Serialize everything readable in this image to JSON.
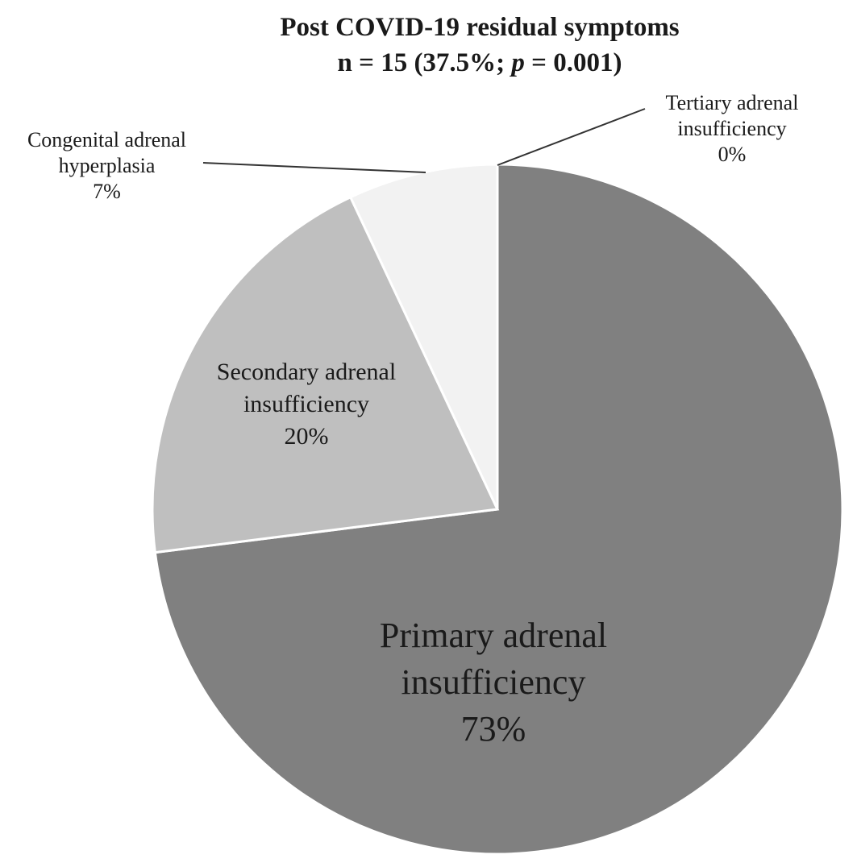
{
  "chart_data": {
    "type": "pie",
    "title_line1": "Post COVID-19 residual symptoms",
    "title_line2_pre": "n = 15 (37.5%; ",
    "title_line2_p": "p",
    "title_line2_post": " = 0.001)",
    "start_angle_deg": 0,
    "direction": "clockwise",
    "slices": [
      {
        "label_line1": "Primary adrenal",
        "label_line2": "insufficiency",
        "value": 73,
        "value_label": "73%",
        "color": "#808080"
      },
      {
        "label_line1": "Secondary  adrenal",
        "label_line2": "insufficiency",
        "value": 20,
        "value_label": "20%",
        "color": "#bfbfbf"
      },
      {
        "label_line1": "Congenital  adrenal",
        "label_line2": "hyperplasia",
        "value": 7,
        "value_label": "7%",
        "color": "#f2f2f2"
      },
      {
        "label_line1": "Tertiary adrenal",
        "label_line2": "insufficiency",
        "value": 0,
        "value_label": "0%",
        "color": "#d9d9d9"
      }
    ]
  }
}
